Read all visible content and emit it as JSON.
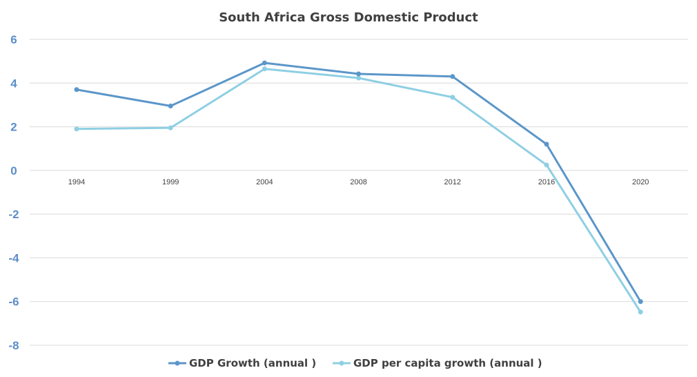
{
  "chart_data": {
    "type": "line",
    "title": "South Africa Gross Domestic Product",
    "xlabel": "",
    "ylabel": "",
    "categories": [
      "1994",
      "1999",
      "2004",
      "2008",
      "2012",
      "2016",
      "2020"
    ],
    "yticks": [
      "6",
      "4",
      "2",
      "0",
      "-2",
      "-4",
      "-6",
      "-8"
    ],
    "ylim": [
      -8,
      6
    ],
    "grid": true,
    "legend_position": "bottom",
    "series": [
      {
        "name": "GDP Growth (annual  )",
        "color": "#5b96c9",
        "values": [
          3.7,
          2.95,
          4.92,
          4.42,
          4.3,
          1.2,
          -6.0
        ]
      },
      {
        "name": "GDP per capita growth (annual  )",
        "color": "#8ecfe3",
        "values": [
          1.9,
          1.95,
          4.65,
          4.23,
          3.35,
          0.25,
          -6.48
        ]
      }
    ]
  }
}
